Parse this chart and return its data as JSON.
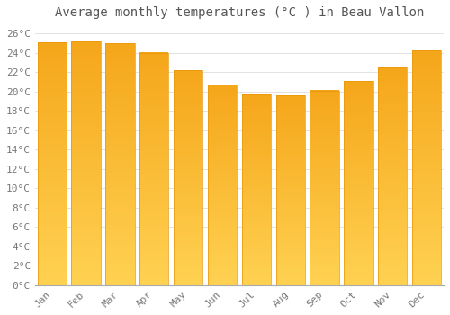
{
  "title": "Average monthly temperatures (°C ) in Beau Vallon",
  "months": [
    "Jan",
    "Feb",
    "Mar",
    "Apr",
    "May",
    "Jun",
    "Jul",
    "Aug",
    "Sep",
    "Oct",
    "Nov",
    "Dec"
  ],
  "values": [
    25.1,
    25.2,
    25.0,
    24.0,
    22.2,
    20.7,
    19.7,
    19.6,
    20.1,
    21.1,
    22.5,
    24.2
  ],
  "bar_color_top": "#F5A623",
  "bar_color_bottom": "#FFD060",
  "bar_edge_color": "#E8960A",
  "background_color": "#FFFFFF",
  "grid_color": "#DDDDDD",
  "text_color": "#777777",
  "title_color": "#555555",
  "ylim": [
    0,
    27
  ],
  "ytick_step": 2,
  "title_fontsize": 10,
  "tick_fontsize": 8,
  "font_family": "monospace",
  "bar_width": 0.85
}
